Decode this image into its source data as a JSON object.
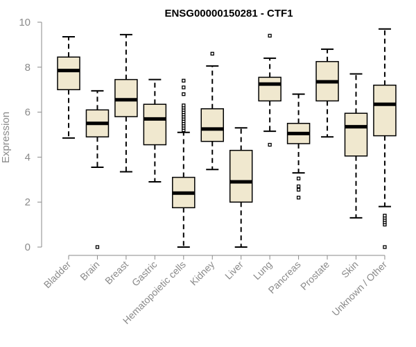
{
  "chart_data": {
    "type": "boxplot",
    "title": "ENSG00000150281 - CTF1",
    "ylabel": "Expression",
    "xlabel": "",
    "ylim": [
      0,
      10
    ],
    "yticks": [
      0,
      2,
      4,
      6,
      8,
      10
    ],
    "grid": false,
    "box_fill": "#f0e8cf",
    "box_stroke": "#000000",
    "median_color": "#000000",
    "categories": [
      "Bladder",
      "Brain",
      "Breast",
      "Gastric",
      "Hematopoietic cells",
      "Kidney",
      "Liver",
      "Lung",
      "Pancreas",
      "Prostate",
      "Skin",
      "Unknown / Other"
    ],
    "boxes": [
      {
        "whislo": 4.85,
        "q1": 7.0,
        "median": 7.85,
        "q3": 8.45,
        "whishi": 9.35,
        "fliers": []
      },
      {
        "whislo": 3.55,
        "q1": 4.9,
        "median": 5.5,
        "q3": 6.1,
        "whishi": 6.95,
        "fliers": [
          0.0
        ]
      },
      {
        "whislo": 3.35,
        "q1": 5.8,
        "median": 6.55,
        "q3": 7.45,
        "whishi": 9.45,
        "fliers": []
      },
      {
        "whislo": 2.9,
        "q1": 4.55,
        "median": 5.7,
        "q3": 6.35,
        "whishi": 7.45,
        "fliers": []
      },
      {
        "whislo": 0.0,
        "q1": 1.75,
        "median": 2.4,
        "q3": 3.1,
        "whishi": 5.1,
        "fliers": [
          5.2,
          5.3,
          5.4,
          5.5,
          5.6,
          5.7,
          5.8,
          5.9,
          6.0,
          6.1,
          6.2,
          6.3,
          6.8,
          7.1,
          7.4
        ]
      },
      {
        "whislo": 3.45,
        "q1": 4.7,
        "median": 5.25,
        "q3": 6.15,
        "whishi": 8.05,
        "fliers": [
          8.6
        ]
      },
      {
        "whislo": 0.0,
        "q1": 2.0,
        "median": 2.9,
        "q3": 4.3,
        "whishi": 5.3,
        "fliers": []
      },
      {
        "whislo": 5.15,
        "q1": 6.5,
        "median": 7.25,
        "q3": 7.55,
        "whishi": 8.4,
        "fliers": [
          4.55,
          9.4
        ]
      },
      {
        "whislo": 3.3,
        "q1": 4.6,
        "median": 5.05,
        "q3": 5.5,
        "whishi": 6.8,
        "fliers": [
          2.2,
          2.55,
          2.7,
          3.05
        ]
      },
      {
        "whislo": 4.9,
        "q1": 6.5,
        "median": 7.35,
        "q3": 8.25,
        "whishi": 8.8,
        "fliers": []
      },
      {
        "whislo": 1.3,
        "q1": 4.05,
        "median": 5.35,
        "q3": 5.95,
        "whishi": 7.7,
        "fliers": []
      },
      {
        "whislo": 1.8,
        "q1": 4.95,
        "median": 6.35,
        "q3": 7.2,
        "whishi": 9.7,
        "fliers": [
          0.0,
          1.0,
          1.1,
          1.2,
          1.3,
          1.4
        ]
      }
    ]
  }
}
